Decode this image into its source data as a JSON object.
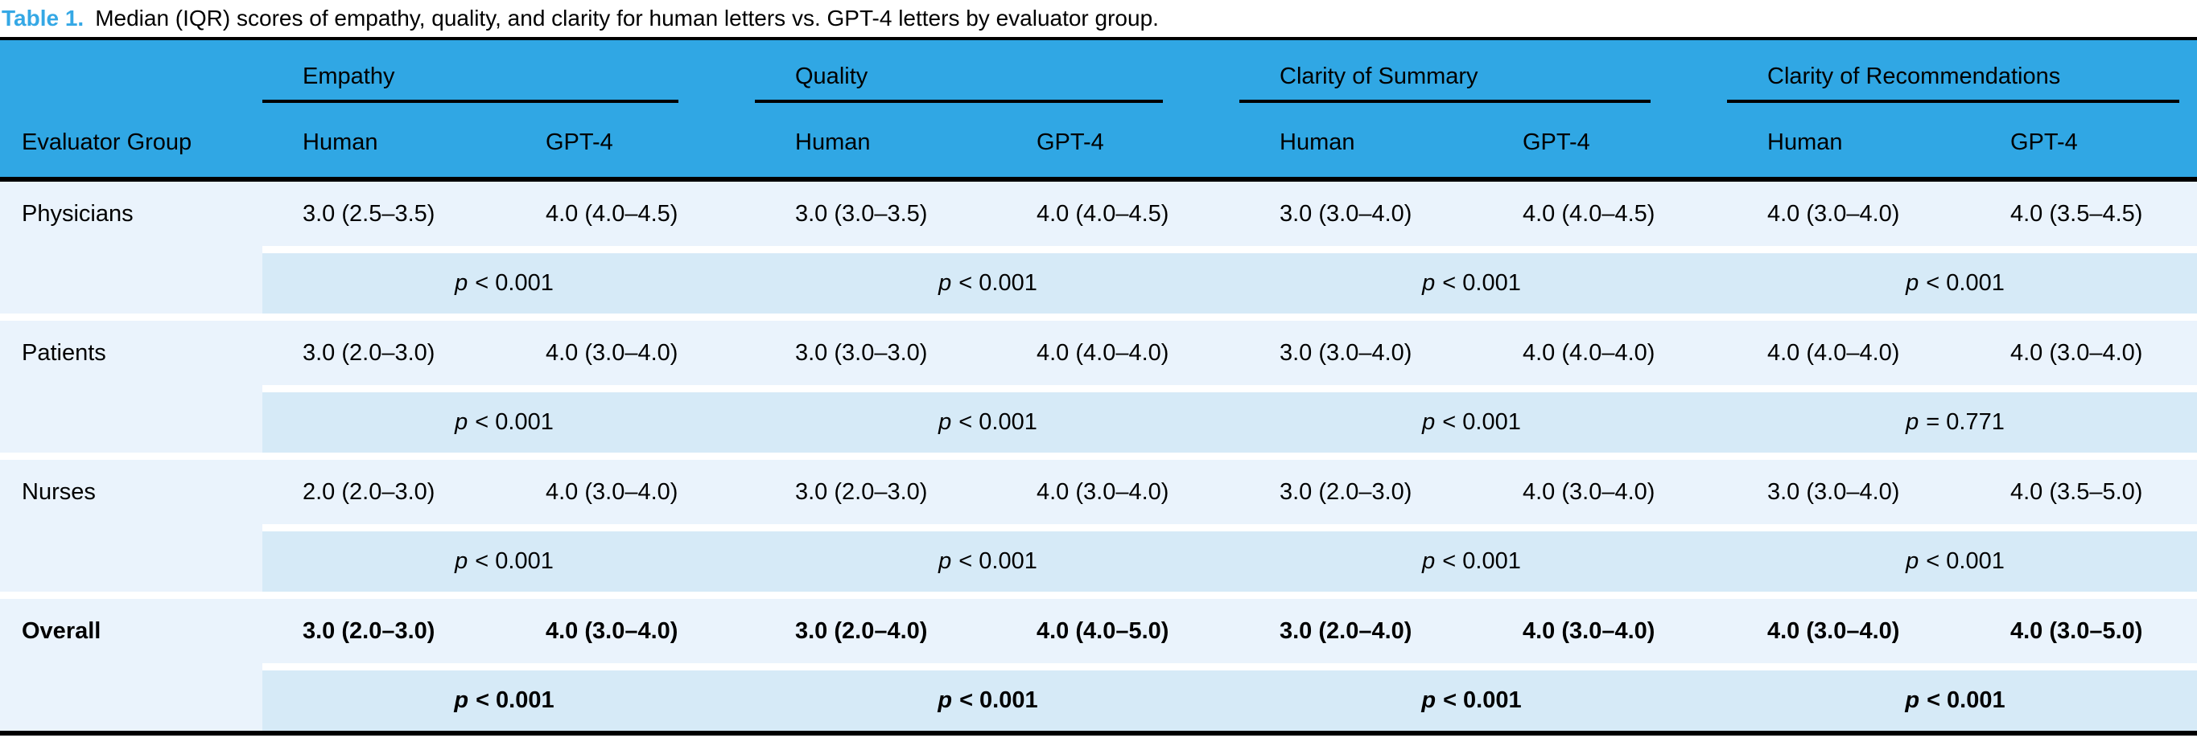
{
  "caption": {
    "label": "Table 1.",
    "text": "Median (IQR) scores of empathy, quality, and clarity for human letters vs. GPT-4 letters by evaluator group."
  },
  "colors": {
    "header_bg": "#30a7e4",
    "data_row_bg": "#eaf3fc",
    "p_band_bg": "#d6eaf7",
    "caption_label_blue": "#35a8e5",
    "text": "#000000"
  },
  "p_symbol": "p",
  "header": {
    "evaluator_group": "Evaluator Group",
    "groups": [
      {
        "label": "Empathy",
        "sub": [
          "Human",
          "GPT-4"
        ]
      },
      {
        "label": "Quality",
        "sub": [
          "Human",
          "GPT-4"
        ]
      },
      {
        "label": "Clarity of Summary",
        "sub": [
          "Human",
          "GPT-4"
        ]
      },
      {
        "label": "Clarity of Recommendations",
        "sub": [
          "Human",
          "GPT-4"
        ]
      }
    ]
  },
  "rows": [
    {
      "group": "Physicians",
      "bold": false,
      "values": [
        "3.0 (2.5–3.5)",
        "4.0 (4.0–4.5)",
        "3.0 (3.0–3.5)",
        "4.0 (4.0–4.5)",
        "3.0 (3.0–4.0)",
        "4.0 (4.0–4.5)",
        "4.0 (3.0–4.0)",
        "4.0 (3.5–4.5)"
      ],
      "p_values": [
        "< 0.001",
        "< 0.001",
        "< 0.001",
        "< 0.001"
      ]
    },
    {
      "group": "Patients",
      "bold": false,
      "values": [
        "3.0 (2.0–3.0)",
        "4.0 (3.0–4.0)",
        "3.0 (3.0–3.0)",
        "4.0 (4.0–4.0)",
        "3.0 (3.0–4.0)",
        "4.0 (4.0–4.0)",
        "4.0 (4.0–4.0)",
        "4.0 (3.0–4.0)"
      ],
      "p_values": [
        "< 0.001",
        "< 0.001",
        "< 0.001",
        "= 0.771"
      ]
    },
    {
      "group": "Nurses",
      "bold": false,
      "values": [
        "2.0 (2.0–3.0)",
        "4.0 (3.0–4.0)",
        "3.0 (2.0–3.0)",
        "4.0 (3.0–4.0)",
        "3.0 (2.0–3.0)",
        "4.0 (3.0–4.0)",
        "3.0 (3.0–4.0)",
        "4.0 (3.5–5.0)"
      ],
      "p_values": [
        "< 0.001",
        "< 0.001",
        "< 0.001",
        "< 0.001"
      ]
    },
    {
      "group": "Overall",
      "bold": true,
      "values": [
        "3.0 (2.0–3.0)",
        "4.0 (3.0–4.0)",
        "3.0 (2.0–4.0)",
        "4.0 (4.0–5.0)",
        "3.0 (2.0–4.0)",
        "4.0 (3.0–4.0)",
        "4.0 (3.0–4.0)",
        "4.0 (3.0–5.0)"
      ],
      "p_values": [
        "< 0.001",
        "< 0.001",
        "< 0.001",
        "< 0.001"
      ]
    }
  ]
}
